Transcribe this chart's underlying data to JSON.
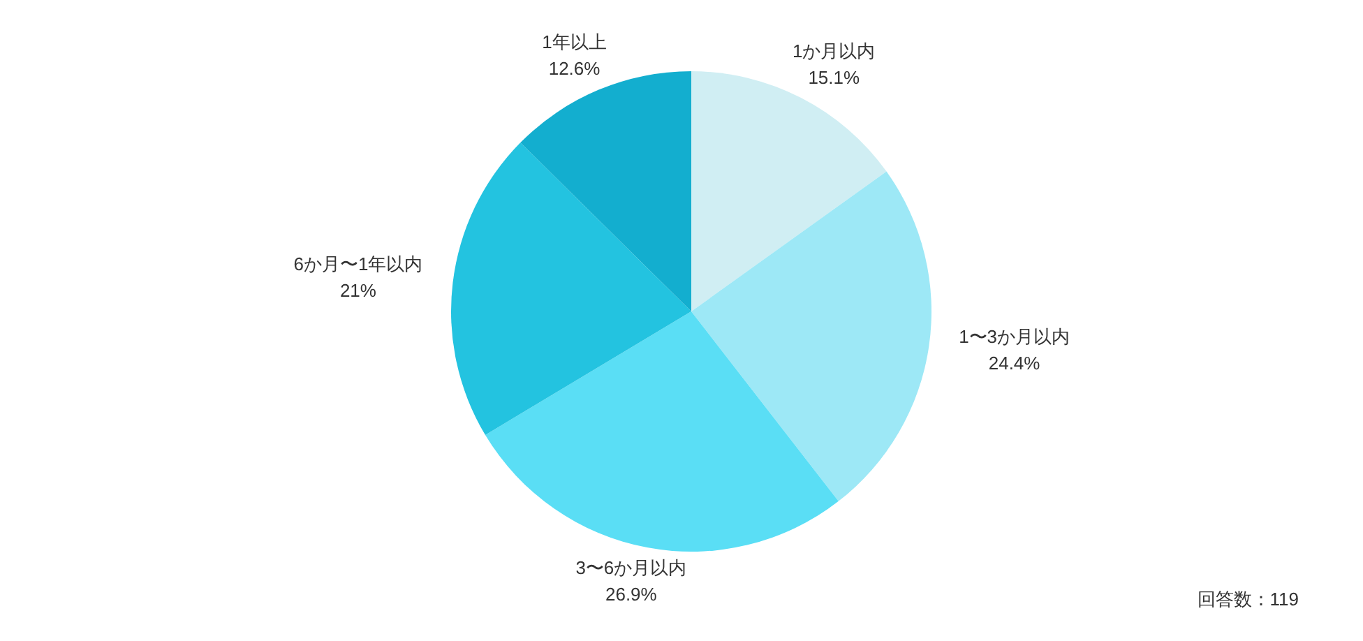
{
  "chart_data": {
    "type": "pie",
    "categories": [
      "1か月以内",
      "1〜3か月以内",
      "3〜6か月以内",
      "6か月〜1年以内",
      "1年以上"
    ],
    "values": [
      15.1,
      24.4,
      26.9,
      21,
      12.6
    ],
    "value_labels": [
      "15.1%",
      "24.4%",
      "26.9%",
      "21%",
      "12.6%"
    ],
    "colors": [
      "#d0eef3",
      "#9de8f6",
      "#5adef5",
      "#23c3e0",
      "#13aecf"
    ],
    "annotations": [
      "回答数：119"
    ]
  }
}
